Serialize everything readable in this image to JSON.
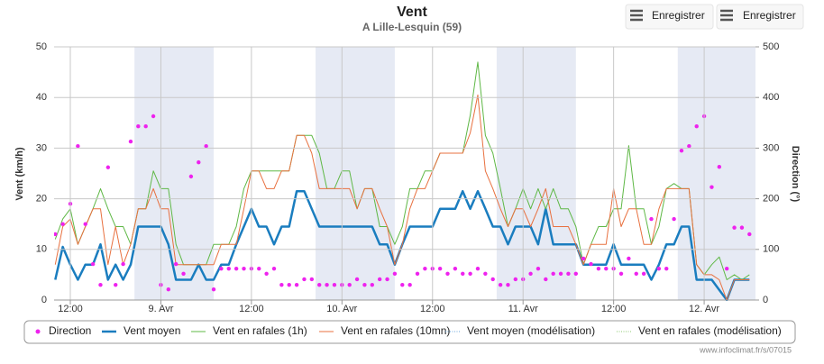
{
  "chart_data": {
    "type": "line",
    "title": "Vent",
    "subtitle": "A Lille-Lesquin (59)",
    "ylabel": "Vent (km/h)",
    "y2label": "Direction (°)",
    "xlim": [
      9.85,
      102.8
    ],
    "xticks": [
      {
        "value": 12,
        "label": "12:00"
      },
      {
        "value": 24,
        "label": "9. Avr"
      },
      {
        "value": 36,
        "label": "12:00"
      },
      {
        "value": 48,
        "label": "10. Avr"
      },
      {
        "value": 60,
        "label": "12:00"
      },
      {
        "value": 72,
        "label": "11. Avr"
      },
      {
        "value": 84,
        "label": "12:00"
      },
      {
        "value": 96,
        "label": "12. Avr"
      }
    ],
    "ylim": [
      0,
      50
    ],
    "yticks": [
      0,
      10,
      20,
      30,
      40,
      50
    ],
    "y2lim": [
      0,
      500
    ],
    "y2ticks": [
      0,
      100,
      200,
      300,
      400,
      500
    ],
    "grid": true,
    "plot_bands": [
      [
        20.5,
        31
      ],
      [
        44.5,
        55
      ],
      [
        68.5,
        79
      ],
      [
        92.5,
        102.8
      ]
    ],
    "band_color": "#e6eaf4",
    "x": [
      10,
      11,
      12,
      13,
      14,
      15,
      16,
      17,
      18,
      19,
      20,
      21,
      22,
      23,
      24,
      25,
      26,
      27,
      28,
      29,
      30,
      31,
      32,
      33,
      34,
      35,
      36,
      37,
      38,
      39,
      40,
      41,
      42,
      43,
      44,
      45,
      46,
      47,
      48,
      49,
      50,
      51,
      52,
      53,
      54,
      55,
      56,
      57,
      58,
      59,
      60,
      61,
      62,
      63,
      64,
      65,
      66,
      67,
      68,
      69,
      70,
      71,
      72,
      73,
      74,
      75,
      76,
      77,
      78,
      79,
      80,
      81,
      82,
      83,
      84,
      85,
      86,
      87,
      88,
      89,
      90,
      91,
      92,
      93,
      94,
      95,
      96,
      97,
      98,
      99,
      100,
      101,
      102
    ],
    "series": [
      {
        "name": "Direction",
        "color": "#ee22ee",
        "mark": "dots",
        "axis": "y2",
        "values": [
          130,
          150,
          190,
          304,
          150,
          71,
          30,
          262,
          30,
          71,
          313,
          343,
          343,
          363,
          30,
          21,
          71,
          52,
          244,
          272,
          304,
          21,
          62,
          62,
          62,
          62,
          62,
          62,
          52,
          62,
          30,
          30,
          30,
          41,
          41,
          30,
          30,
          30,
          30,
          30,
          41,
          30,
          30,
          41,
          41,
          52,
          30,
          30,
          52,
          62,
          62,
          62,
          52,
          62,
          52,
          52,
          62,
          52,
          41,
          30,
          30,
          41,
          41,
          52,
          62,
          41,
          52,
          52,
          52,
          52,
          82,
          71,
          62,
          62,
          62,
          52,
          82,
          52,
          52,
          160,
          62,
          62,
          160,
          295,
          304,
          343,
          363,
          223,
          263,
          62,
          143,
          143,
          130
        ]
      },
      {
        "name": "Vent moyen",
        "color": "#1a7dbf",
        "mark": "line",
        "width": 2.5,
        "values": [
          4,
          10.5,
          7,
          4,
          7,
          7,
          11,
          4,
          7,
          4,
          7,
          14.5,
          14.5,
          14.5,
          14.5,
          11,
          4,
          4,
          4,
          7,
          4,
          4,
          7,
          7,
          11,
          14.5,
          18,
          14.5,
          14.5,
          11,
          14.5,
          14.5,
          21.5,
          21.5,
          18,
          14.5,
          14.5,
          14.5,
          14.5,
          14.5,
          14.5,
          14.5,
          14.5,
          11,
          11,
          7,
          11,
          14.5,
          14.5,
          14.5,
          14.5,
          18,
          18,
          18,
          21.5,
          18,
          21.5,
          18,
          14.5,
          14.5,
          11,
          14.5,
          14.5,
          14.5,
          11,
          18,
          11,
          11,
          11,
          11,
          7,
          7,
          7,
          7,
          11,
          7,
          7,
          7,
          7,
          4,
          7,
          11,
          11,
          14.5,
          14.5,
          4,
          4,
          4,
          2,
          0,
          4,
          4,
          4
        ]
      },
      {
        "name": "Vent en rafales (1h)",
        "color": "#5fb846",
        "mark": "line",
        "width": 1,
        "values": [
          12,
          16,
          18,
          11,
          14.5,
          18,
          22,
          18,
          14.5,
          14.5,
          11,
          18,
          18,
          25.5,
          22,
          22,
          11,
          7,
          7,
          7,
          7,
          11,
          11,
          11,
          14.5,
          22,
          25.5,
          25.5,
          25.5,
          25.5,
          25.5,
          25.5,
          32.5,
          32.5,
          32.5,
          29,
          22,
          22,
          25.5,
          25.5,
          18,
          22,
          22,
          14.5,
          14.5,
          11,
          14.5,
          22,
          22,
          25.5,
          25.5,
          29,
          29,
          29,
          29,
          36.5,
          47,
          32.5,
          29,
          22,
          14.5,
          18,
          22,
          18,
          22,
          18,
          22,
          18,
          18,
          14.5,
          7,
          11,
          14.5,
          14.5,
          18,
          18,
          30.5,
          18,
          18,
          11,
          14.5,
          22,
          23,
          22,
          22,
          7,
          5,
          7,
          8.5,
          4,
          5,
          4,
          5
        ]
      },
      {
        "name": "Vent en rafales (10mn)",
        "color": "#e8703f",
        "mark": "line",
        "width": 1,
        "values": [
          7,
          14.5,
          16,
          11,
          14.5,
          18,
          18,
          7,
          14.5,
          7,
          11,
          18,
          18,
          22,
          18,
          18,
          7,
          7,
          7,
          7,
          7,
          7,
          11,
          11,
          11,
          18,
          25.5,
          25.5,
          22,
          22,
          25.5,
          25.5,
          32.5,
          32.5,
          29,
          22,
          22,
          22,
          22,
          22,
          18,
          22,
          22,
          18,
          14.5,
          7,
          11,
          18,
          22,
          22,
          25.5,
          29,
          29,
          29,
          29,
          33,
          40.5,
          25.5,
          22,
          18,
          14.5,
          18,
          18,
          14.5,
          18,
          22,
          14.5,
          14.5,
          14.5,
          11,
          7,
          11,
          11,
          11,
          22,
          14.5,
          18,
          18,
          11,
          11,
          18,
          22,
          22,
          22,
          22,
          7,
          5,
          5,
          4,
          0,
          4,
          4,
          4
        ]
      },
      {
        "name": "Vent moyen (modélisation)",
        "color": "#6aa6dc",
        "mark": "line",
        "width": 1,
        "dash": true,
        "values": [
          null,
          null,
          null,
          null,
          null,
          null,
          null,
          null,
          null,
          null,
          null,
          null,
          null,
          null,
          null,
          null,
          null,
          null,
          null,
          null,
          null,
          null,
          null,
          null,
          null,
          null,
          null,
          null,
          null,
          null,
          null,
          null,
          null,
          null,
          null,
          null,
          null,
          null,
          null,
          null,
          null,
          null,
          null,
          null,
          null,
          null,
          null,
          null,
          null,
          null,
          null,
          null,
          null,
          null,
          null,
          null,
          null,
          null,
          null,
          null,
          null,
          null,
          null,
          null,
          null,
          null,
          null,
          null,
          null,
          null,
          null,
          null,
          null,
          null,
          null,
          null,
          null,
          null,
          null,
          null,
          null,
          null,
          null,
          null,
          null,
          null,
          null,
          null,
          null,
          null,
          null,
          null,
          null
        ]
      },
      {
        "name": "Vent en rafales (modélisation)",
        "color": "#8cc86e",
        "mark": "line",
        "width": 1,
        "dash": true,
        "values": [
          null,
          null,
          null,
          null,
          null,
          null,
          null,
          null,
          null,
          null,
          null,
          null,
          null,
          null,
          null,
          null,
          null,
          null,
          null,
          null,
          null,
          null,
          null,
          null,
          null,
          null,
          null,
          null,
          null,
          null,
          null,
          null,
          null,
          null,
          null,
          null,
          null,
          null,
          null,
          null,
          null,
          null,
          null,
          null,
          null,
          null,
          null,
          null,
          null,
          null,
          null,
          null,
          null,
          null,
          null,
          null,
          null,
          null,
          null,
          null,
          null,
          null,
          null,
          null,
          null,
          null,
          null,
          null,
          null,
          null,
          null,
          null,
          null,
          null,
          null,
          null,
          null,
          null,
          null,
          null,
          null,
          null,
          null,
          null,
          null,
          null,
          null,
          null,
          null,
          null,
          null,
          null,
          null
        ]
      }
    ]
  },
  "buttons": [
    "Enregistrer",
    "Enregistrer"
  ],
  "credit": "www.infoclimat.fr/s/07015"
}
